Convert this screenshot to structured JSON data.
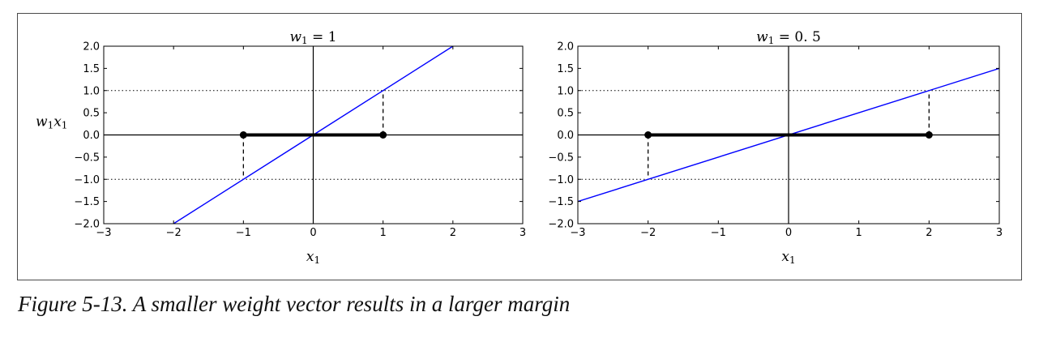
{
  "caption": "Figure 5-13. A smaller weight vector results in a larger margin",
  "colors": {
    "line": "#0000ff",
    "segment": "#000000",
    "axis": "#000000"
  },
  "chart_data": [
    {
      "type": "line",
      "title": "w₁ = 1",
      "title_parts": {
        "base": "w",
        "sub": "1",
        "rest": " = 1"
      },
      "xlabel_parts": {
        "base": "x",
        "sub": "1"
      },
      "ylabel_parts": {
        "base": "w",
        "sub": "1",
        "base2": "x",
        "sub2": "1"
      },
      "xlim": [
        -3,
        3
      ],
      "ylim": [
        -2,
        2
      ],
      "xticks": [
        -3,
        -2,
        -1,
        0,
        1,
        2,
        3
      ],
      "xtick_labels": [
        "−3",
        "−2",
        "−1",
        "0",
        "1",
        "2",
        "3"
      ],
      "yticks": [
        2.0,
        1.5,
        1.0,
        0.5,
        0.0,
        -0.5,
        -1.0,
        -1.5,
        -2.0
      ],
      "ytick_labels": [
        "2.0",
        "1.5",
        "1.0",
        "0.5",
        "0.0",
        "−0.5",
        "−1.0",
        "−1.5",
        "−2.0"
      ],
      "weight": 1,
      "line": {
        "x": [
          -2,
          2
        ],
        "y": [
          -2,
          2
        ]
      },
      "hlines_dotted": [
        1,
        -1
      ],
      "margin_segment": {
        "x": [
          -1,
          1
        ],
        "y": [
          0,
          0
        ]
      },
      "dashed": [
        {
          "x": 1,
          "y": [
            0,
            1
          ]
        },
        {
          "x": -1,
          "y": [
            0,
            -1
          ]
        }
      ]
    },
    {
      "type": "line",
      "title": "w₁ = 0.5",
      "title_parts": {
        "base": "w",
        "sub": "1",
        "rest": " = 0. 5"
      },
      "xlabel_parts": {
        "base": "x",
        "sub": "1"
      },
      "xlim": [
        -3,
        3
      ],
      "ylim": [
        -2,
        2
      ],
      "xticks": [
        -3,
        -2,
        -1,
        0,
        1,
        2,
        3
      ],
      "xtick_labels": [
        "−3",
        "−2",
        "−1",
        "0",
        "1",
        "2",
        "3"
      ],
      "yticks": [
        2.0,
        1.5,
        1.0,
        0.5,
        0.0,
        -0.5,
        -1.0,
        -1.5,
        -2.0
      ],
      "ytick_labels": [
        "2.0",
        "1.5",
        "1.0",
        "0.5",
        "0.0",
        "−0.5",
        "−1.0",
        "−1.5",
        "−2.0"
      ],
      "weight": 0.5,
      "line": {
        "x": [
          -3,
          3
        ],
        "y": [
          -1.5,
          1.5
        ]
      },
      "hlines_dotted": [
        1,
        -1
      ],
      "margin_segment": {
        "x": [
          -2,
          2
        ],
        "y": [
          0,
          0
        ]
      },
      "dashed": [
        {
          "x": 2,
          "y": [
            0,
            1
          ]
        },
        {
          "x": -2,
          "y": [
            0,
            -1
          ]
        }
      ]
    }
  ]
}
